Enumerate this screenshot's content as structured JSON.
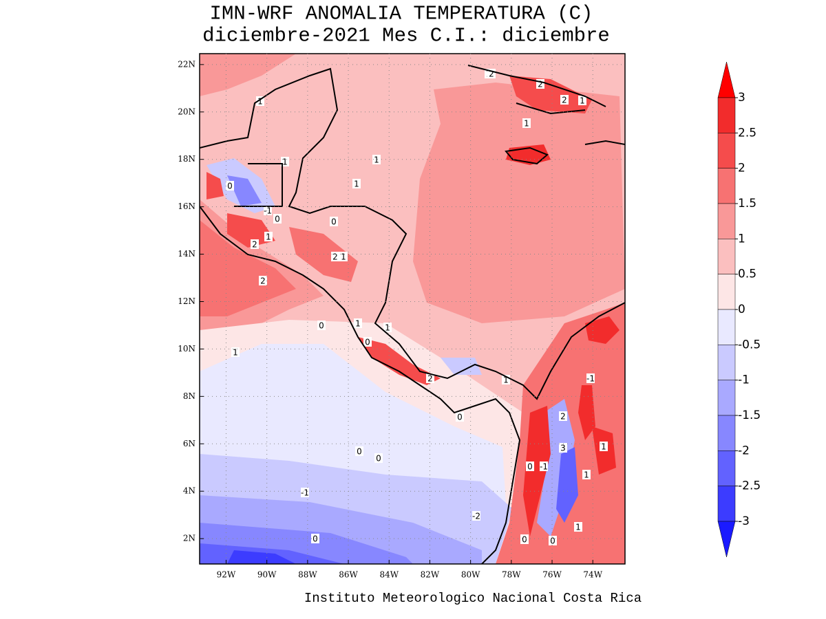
{
  "title": "IMN-WRF  ANOMALIA TEMPERATURA (C)",
  "subtitle": "diciembre-2021 Mes C.I.: diciembre",
  "footer": "Instituto Meteorologico Nacional Costa Rica",
  "map": {
    "xlim": [
      -93.3,
      -72.42
    ],
    "ylim": [
      0.93,
      22.46
    ],
    "grid": true,
    "xticks": [
      {
        "value": -92,
        "label": "92W"
      },
      {
        "value": -90,
        "label": "90W"
      },
      {
        "value": -88,
        "label": "88W"
      },
      {
        "value": -86,
        "label": "86W"
      },
      {
        "value": -84,
        "label": "84W"
      },
      {
        "value": -82,
        "label": "82W"
      },
      {
        "value": -80,
        "label": "80W"
      },
      {
        "value": -78,
        "label": "78W"
      },
      {
        "value": -76,
        "label": "76W"
      },
      {
        "value": -74,
        "label": "74W"
      }
    ],
    "yticks": [
      {
        "value": 2,
        "label": "2N"
      },
      {
        "value": 4,
        "label": "4N"
      },
      {
        "value": 6,
        "label": "6N"
      },
      {
        "value": 8,
        "label": "8N"
      },
      {
        "value": 10,
        "label": "10N"
      },
      {
        "value": 12,
        "label": "12N"
      },
      {
        "value": 14,
        "label": "14N"
      },
      {
        "value": 16,
        "label": "16N"
      },
      {
        "value": 18,
        "label": "18N"
      },
      {
        "value": 20,
        "label": "20N"
      },
      {
        "value": 22,
        "label": "22N"
      }
    ],
    "contour_labels": [
      "1",
      "1",
      "0",
      "-1",
      "0",
      "1",
      "2",
      "2",
      "0",
      "2",
      "1",
      "1",
      "1",
      "0",
      "1",
      "1",
      "2",
      "0",
      "1",
      "1",
      "0",
      "1",
      "2",
      "1",
      "2",
      "0",
      "0",
      "0",
      "-1",
      "-1",
      "-2",
      "0",
      "-1",
      "3",
      "2",
      "1",
      "1",
      "0",
      "0",
      "1",
      "2",
      "1"
    ]
  },
  "colorbar": {
    "levels": [
      3,
      2.5,
      2,
      1.5,
      1,
      0.5,
      0,
      -0.5,
      -1,
      -1.5,
      -2,
      -2.5,
      -3
    ],
    "colors": [
      "#ff0000",
      "#f22c2c",
      "#f54c4c",
      "#f77272",
      "#f99898",
      "#fbbfbf",
      "#fde6e6",
      "#e9e9ff",
      "#cacaff",
      "#a9a9ff",
      "#8787ff",
      "#6262ff",
      "#3c3cff",
      "#1a1aff"
    ]
  }
}
